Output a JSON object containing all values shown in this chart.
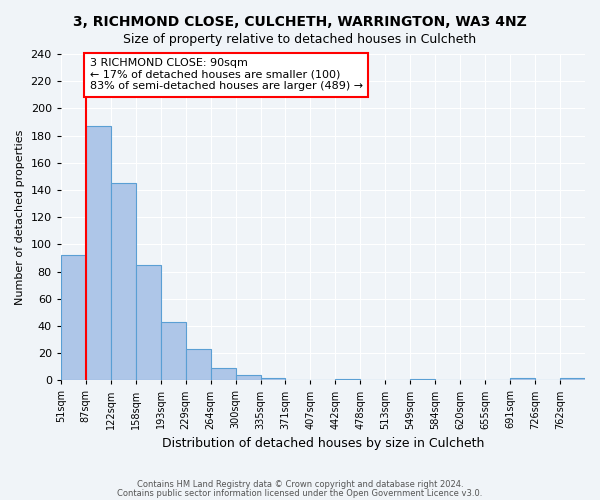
{
  "title": "3, RICHMOND CLOSE, CULCHETH, WARRINGTON, WA3 4NZ",
  "subtitle": "Size of property relative to detached houses in Culcheth",
  "xlabel": "Distribution of detached houses by size in Culcheth",
  "ylabel": "Number of detached properties",
  "bin_labels": [
    "51sqm",
    "87sqm",
    "122sqm",
    "158sqm",
    "193sqm",
    "229sqm",
    "264sqm",
    "300sqm",
    "335sqm",
    "371sqm",
    "407sqm",
    "442sqm",
    "478sqm",
    "513sqm",
    "549sqm",
    "584sqm",
    "620sqm",
    "655sqm",
    "691sqm",
    "726sqm",
    "762sqm"
  ],
  "bar_heights": [
    92,
    187,
    145,
    85,
    43,
    23,
    9,
    4,
    2,
    0,
    0,
    1,
    0,
    0,
    1,
    0,
    0,
    0,
    2,
    0,
    2
  ],
  "bar_color": "#aec6e8",
  "bar_edge_color": "#5a9fd4",
  "vline_x_index": 1,
  "vline_color": "red",
  "annotation_title": "3 RICHMOND CLOSE: 90sqm",
  "annotation_line1": "← 17% of detached houses are smaller (100)",
  "annotation_line2": "83% of semi-detached houses are larger (489) →",
  "annotation_box_color": "white",
  "annotation_box_edge": "red",
  "ylim": [
    0,
    240
  ],
  "yticks": [
    0,
    20,
    40,
    60,
    80,
    100,
    120,
    140,
    160,
    180,
    200,
    220,
    240
  ],
  "footer1": "Contains HM Land Registry data © Crown copyright and database right 2024.",
  "footer2": "Contains public sector information licensed under the Open Government Licence v3.0.",
  "bg_color": "#f0f4f8",
  "grid_color": "white"
}
